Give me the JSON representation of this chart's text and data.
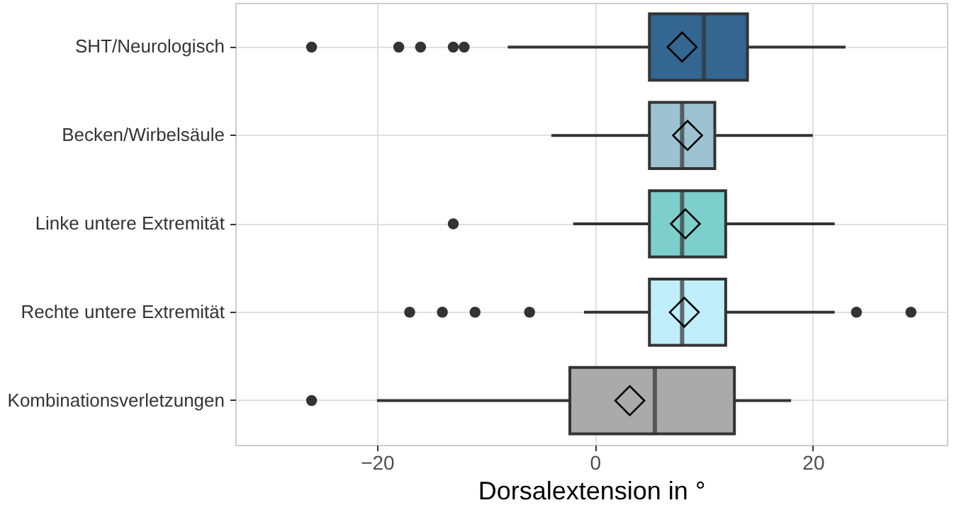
{
  "chart_data": {
    "type": "box",
    "orientation": "horizontal",
    "xlabel": "Dorsalextension in °",
    "categories": [
      "SHT/Neurologisch",
      "Becken/Wirbelsäule",
      "Linke untere Extremität",
      "Rechte untere Extremität",
      "Kombinationsverletzungen"
    ],
    "colors": [
      "#336690",
      "#9dc3d3",
      "#7dcfcc",
      "#c0eefa",
      "#aaaaaa"
    ],
    "boxes": [
      {
        "low": -8,
        "q1": 5,
        "median": 10,
        "q3": 14,
        "high": 23,
        "mean": 8,
        "outliers": [
          -26,
          -18,
          -16,
          -13,
          -12
        ]
      },
      {
        "low": -4,
        "q1": 5,
        "median": 8,
        "q3": 11,
        "high": 20,
        "mean": 8.5
      },
      {
        "low": -2,
        "q1": 5,
        "median": 8,
        "q3": 12,
        "high": 22,
        "mean": 8.3,
        "outliers": [
          -13
        ]
      },
      {
        "low": -1,
        "q1": 5,
        "median": 8,
        "q3": 12,
        "high": 22,
        "mean": 8.2,
        "outliers": [
          -17,
          -14,
          -11,
          -6,
          24,
          29
        ]
      },
      {
        "low": -20,
        "q1": -2.3,
        "median": 5.5,
        "q3": 12.8,
        "high": 18,
        "mean": 3.2,
        "outliers": [
          -26
        ]
      }
    ],
    "xlim": [
      -33,
      32.3
    ],
    "xticks": [
      -20,
      0,
      20
    ],
    "grid": true,
    "marker": "diamond"
  }
}
